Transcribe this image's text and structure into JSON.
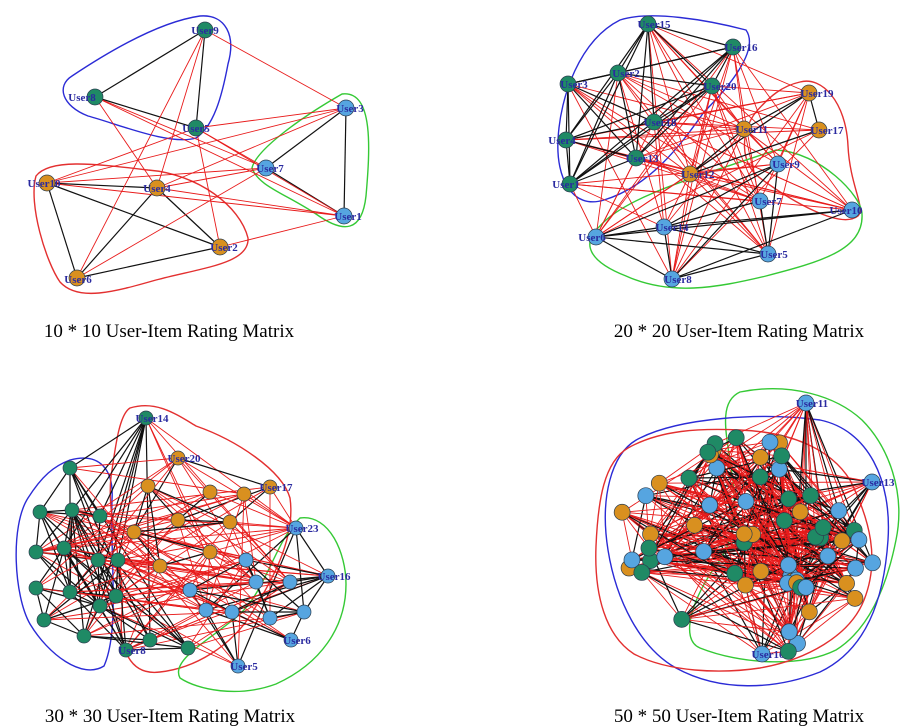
{
  "colors": {
    "cluster_blue": "#2b2bd6",
    "cluster_green": "#35c935",
    "cluster_red": "#e33030",
    "edge_intra": "#111111",
    "edge_inter": "#e81b1b",
    "node_green": "#1f8a65",
    "node_blue": "#56a5e0",
    "node_orange": "#d9901f",
    "node_label": "#2a2aa0"
  },
  "panels": [
    {
      "caption": "10 * 10 User-Item Rating Matrix",
      "nodes": [
        {
          "label": "User9",
          "group": "green"
        },
        {
          "label": "User8",
          "group": "green"
        },
        {
          "label": "User5",
          "group": "green"
        },
        {
          "label": "User3",
          "group": "blue"
        },
        {
          "label": "User7",
          "group": "blue"
        },
        {
          "label": "User1",
          "group": "blue"
        },
        {
          "label": "User10",
          "group": "orange"
        },
        {
          "label": "User4",
          "group": "orange"
        },
        {
          "label": "User2",
          "group": "orange"
        },
        {
          "label": "User6",
          "group": "orange"
        }
      ]
    },
    {
      "caption": "20 * 20 User-Item Rating Matrix",
      "nodes": [
        {
          "label": "User15",
          "group": "green"
        },
        {
          "label": "User16",
          "group": "green"
        },
        {
          "label": "User3",
          "group": "green"
        },
        {
          "label": "User2",
          "group": "green"
        },
        {
          "label": "User20",
          "group": "green"
        },
        {
          "label": "User18",
          "group": "green"
        },
        {
          "label": "User4",
          "group": "green"
        },
        {
          "label": "User1",
          "group": "green"
        },
        {
          "label": "User13",
          "group": "green"
        },
        {
          "label": "User19",
          "group": "orange"
        },
        {
          "label": "User17",
          "group": "orange"
        },
        {
          "label": "User11",
          "group": "orange"
        },
        {
          "label": "User12",
          "group": "orange"
        },
        {
          "label": "User9",
          "group": "blue"
        },
        {
          "label": "User7",
          "group": "blue"
        },
        {
          "label": "User10",
          "group": "blue"
        },
        {
          "label": "User14",
          "group": "blue"
        },
        {
          "label": "User6",
          "group": "blue"
        },
        {
          "label": "User5",
          "group": "blue"
        },
        {
          "label": "User8",
          "group": "blue"
        }
      ]
    },
    {
      "caption": "30 * 30 User-Item Rating Matrix",
      "nodes": [
        {
          "label": "User14",
          "group": "green"
        },
        {
          "label": "User20",
          "group": "orange"
        },
        {
          "label": "User17",
          "group": "orange"
        },
        {
          "label": "User23",
          "group": "blue"
        },
        {
          "label": "User16",
          "group": "blue"
        },
        {
          "label": "User6",
          "group": "blue"
        },
        {
          "label": "User5",
          "group": "blue"
        },
        {
          "label": "User8",
          "group": "green"
        }
      ]
    },
    {
      "caption": "50 * 50 User-Item Rating Matrix",
      "nodes": [
        {
          "label": "User11",
          "group": "blue"
        },
        {
          "label": "User13",
          "group": "blue"
        },
        {
          "label": "User10",
          "group": "blue"
        }
      ]
    }
  ]
}
